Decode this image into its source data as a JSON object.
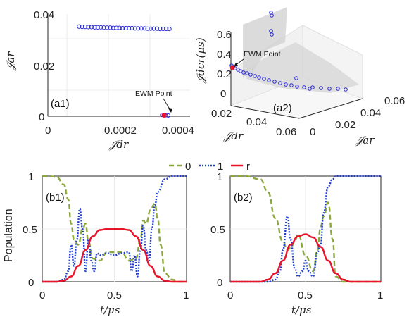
{
  "colors": {
    "pareto": "#2b2bd6",
    "ewm": "#e8142c",
    "dash0": "#8aa83c",
    "dot1": "#1f3fd0",
    "r": "#e8142c",
    "surface": "#c9c9c9"
  },
  "chart_data": [
    {
      "id": "a1",
      "type": "scatter",
      "panel_label": "(a1)",
      "xlabel": "𝒥dr",
      "ylabel": "𝒥ar",
      "xlim": [
        0,
        0.0004
      ],
      "ylim": [
        0,
        0.04
      ],
      "xticks": [
        "0",
        "0.0002",
        "0.0004"
      ],
      "yticks": [
        "0",
        "0.02",
        "0.04"
      ],
      "annotation": "EWM Point",
      "series": [
        {
          "x": [
            0.0001,
            0.00011,
            0.00012,
            0.00013,
            0.00014,
            0.00015,
            0.00016,
            0.00017,
            0.00018,
            0.00019,
            0.0002,
            0.00021,
            0.00022,
            0.00023,
            0.00024,
            0.00025,
            0.00026,
            0.00027,
            0.00028,
            0.00029,
            0.0003,
            0.00031,
            0.00032,
            0.00033,
            0.00034,
            0.00035,
            0.00036,
            0.00037,
            0.00038,
            0.00039,
            0.000367,
            0.000378,
            0.000386
          ],
          "y": [
            0.0351,
            0.035,
            0.035,
            0.0349,
            0.0349,
            0.0348,
            0.0348,
            0.0348,
            0.0347,
            0.0347,
            0.0347,
            0.0346,
            0.0346,
            0.0346,
            0.0345,
            0.0345,
            0.0345,
            0.0345,
            0.0344,
            0.0344,
            0.0344,
            0.0344,
            0.0343,
            0.0343,
            0.0343,
            0.0343,
            0.0342,
            0.0342,
            0.0342,
            0.0342,
            0.0005,
            0.0004,
            0.0003
          ]
        }
      ],
      "ewm_point": {
        "x": 0.000373,
        "y": 0.0004
      }
    },
    {
      "id": "a2",
      "type": "scatter",
      "panel_label": "(a2)",
      "xlabel": "𝒥dr",
      "ylabel": "𝒥dcr(μs)",
      "zlabel": "𝒥ar",
      "xticks": [
        "0.02",
        "0.04",
        "0.06"
      ],
      "zticks": [
        "0",
        "0.02",
        "0.04",
        "0.06"
      ],
      "yticks": [
        "0",
        "0.2",
        "0.4",
        "0.6"
      ],
      "annotation": "EWM Point"
    },
    {
      "id": "b1",
      "type": "line",
      "panel_label": "(b1)",
      "xlabel": "t/μs",
      "ylabel": "Population",
      "xlim": [
        0,
        1
      ],
      "ylim": [
        0,
        1
      ],
      "xticks": [
        "0",
        "0.5",
        "1"
      ],
      "yticks": [
        "0",
        "0.5",
        "1"
      ],
      "series": [
        {
          "name": "0",
          "style": "dashed",
          "x": [
            0,
            0.05,
            0.1,
            0.15,
            0.18,
            0.2,
            0.22,
            0.25,
            0.28,
            0.3,
            0.32,
            0.35,
            0.4,
            0.45,
            0.5,
            0.55,
            0.6,
            0.65,
            0.68,
            0.7,
            0.72,
            0.75,
            0.78,
            0.8,
            0.82,
            0.85,
            0.9,
            0.95,
            1
          ],
          "y": [
            1,
            1,
            0.99,
            0.92,
            0.78,
            0.55,
            0.4,
            0.35,
            0.5,
            0.55,
            0.38,
            0.22,
            0.2,
            0.28,
            0.28,
            0.28,
            0.2,
            0.22,
            0.4,
            0.58,
            0.55,
            0.68,
            0.74,
            0.6,
            0.35,
            0.08,
            0.02,
            0,
            0
          ]
        },
        {
          "name": "1",
          "style": "dotted",
          "x": [
            0,
            0.1,
            0.15,
            0.18,
            0.2,
            0.22,
            0.24,
            0.26,
            0.28,
            0.3,
            0.32,
            0.34,
            0.36,
            0.38,
            0.4,
            0.45,
            0.5,
            0.55,
            0.6,
            0.62,
            0.64,
            0.66,
            0.68,
            0.7,
            0.72,
            0.74,
            0.76,
            0.78,
            0.8,
            0.85,
            0.9,
            0.95,
            1
          ],
          "y": [
            0,
            0,
            0.02,
            0.1,
            0.35,
            0.15,
            0.4,
            0.69,
            0.5,
            0.1,
            0.4,
            0.2,
            0.1,
            0.27,
            0.25,
            0.27,
            0.25,
            0.27,
            0.28,
            0.1,
            0.25,
            0.05,
            0.3,
            0.53,
            0.3,
            0.2,
            0.5,
            0.72,
            0.85,
            0.97,
            1,
            1,
            1
          ]
        },
        {
          "name": "r",
          "style": "solid",
          "x": [
            0,
            0.1,
            0.15,
            0.2,
            0.25,
            0.3,
            0.35,
            0.4,
            0.45,
            0.5,
            0.55,
            0.6,
            0.65,
            0.7,
            0.75,
            0.8,
            0.85,
            0.9,
            1
          ],
          "y": [
            0,
            0,
            0.01,
            0.05,
            0.15,
            0.3,
            0.43,
            0.49,
            0.5,
            0.5,
            0.5,
            0.49,
            0.43,
            0.3,
            0.15,
            0.05,
            0.01,
            0,
            0
          ]
        }
      ]
    },
    {
      "id": "b2",
      "type": "line",
      "panel_label": "(b2)",
      "xlabel": "t/μs",
      "xlim": [
        0,
        1
      ],
      "ylim": [
        0,
        1
      ],
      "xticks": [
        "0",
        "0.5",
        "1"
      ],
      "yticks": [
        "0",
        "0.5",
        "1"
      ],
      "series": [
        {
          "name": "0",
          "style": "dashed",
          "x": [
            0,
            0.1,
            0.2,
            0.25,
            0.3,
            0.35,
            0.38,
            0.4,
            0.43,
            0.45,
            0.5,
            0.55,
            0.58,
            0.6,
            0.62,
            0.65,
            0.68,
            0.7,
            0.75,
            0.8,
            1
          ],
          "y": [
            1,
            1,
            0.97,
            0.85,
            0.6,
            0.38,
            0.3,
            0.32,
            0.38,
            0.45,
            0.25,
            0.1,
            0.3,
            0.52,
            0.62,
            0.75,
            0.4,
            0.05,
            0,
            0,
            0
          ]
        },
        {
          "name": "1",
          "style": "dotted",
          "x": [
            0,
            0.25,
            0.3,
            0.33,
            0.35,
            0.38,
            0.4,
            0.43,
            0.45,
            0.48,
            0.5,
            0.52,
            0.55,
            0.58,
            0.6,
            0.62,
            0.65,
            0.68,
            0.7,
            0.75,
            0.8,
            1
          ],
          "y": [
            0,
            0,
            0.02,
            0.1,
            0.3,
            0.62,
            0.4,
            0.12,
            0.05,
            0.1,
            0.2,
            0.1,
            0.05,
            0.28,
            0.35,
            0.65,
            0.9,
            0.97,
            1,
            1,
            1,
            1
          ]
        },
        {
          "name": "r",
          "style": "solid",
          "x": [
            0,
            0.2,
            0.25,
            0.3,
            0.35,
            0.4,
            0.45,
            0.5,
            0.55,
            0.6,
            0.65,
            0.7,
            0.75,
            0.8,
            1
          ],
          "y": [
            0,
            0,
            0.02,
            0.08,
            0.2,
            0.35,
            0.43,
            0.45,
            0.42,
            0.33,
            0.2,
            0.08,
            0.02,
            0,
            0
          ]
        }
      ]
    }
  ],
  "legend": {
    "placement": "top-center",
    "entries": [
      "0",
      "1",
      "r"
    ]
  }
}
